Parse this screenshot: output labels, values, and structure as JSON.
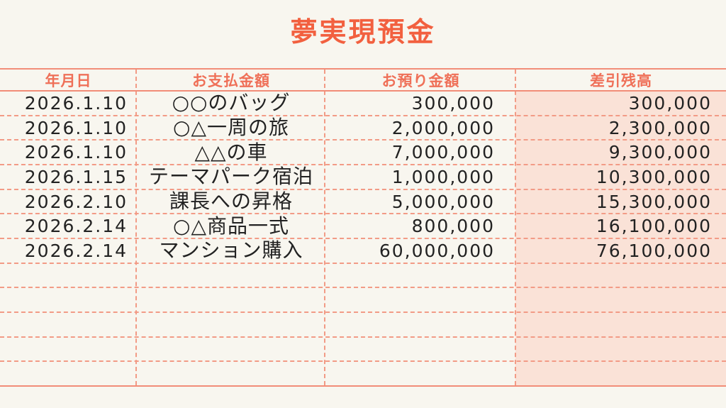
{
  "title": "夢実現預金",
  "table": {
    "columns": [
      "年月日",
      "お支払金額",
      "お預り金額",
      "差引残高"
    ],
    "rows": [
      {
        "date": "2026.1.10",
        "item": "○○のバッグ",
        "deposit": "300,000",
        "balance": "300,000"
      },
      {
        "date": "2026.1.10",
        "item": "○△一周の旅",
        "deposit": "2,000,000",
        "balance": "2,300,000"
      },
      {
        "date": "2026.1.10",
        "item": "△△の車",
        "deposit": "7,000,000",
        "balance": "9,300,000"
      },
      {
        "date": "2026.1.15",
        "item": "テーマパーク宿泊",
        "deposit": "1,000,000",
        "balance": "10,300,000"
      },
      {
        "date": "2026.2.10",
        "item": "課長への昇格",
        "deposit": "5,000,000",
        "balance": "15,300,000"
      },
      {
        "date": "2026.2.14",
        "item": "○△商品一式",
        "deposit": "800,000",
        "balance": "16,100,000"
      },
      {
        "date": "2026.2.14",
        "item": "マンション購入",
        "deposit": "60,000,000",
        "balance": "76,100,000"
      }
    ],
    "empty_row_count": 5
  },
  "chart_data": {
    "type": "table",
    "title": "夢実現預金",
    "columns": [
      "年月日",
      "お支払金額",
      "お預り金額",
      "差引残高"
    ],
    "rows": [
      [
        "2026.1.10",
        "○○のバッグ",
        "300,000",
        "300,000"
      ],
      [
        "2026.1.10",
        "○△一周の旅",
        "2,000,000",
        "2,300,000"
      ],
      [
        "2026.1.10",
        "△△の車",
        "7,000,000",
        "9,300,000"
      ],
      [
        "2026.1.15",
        "テーマパーク宿泊",
        "1,000,000",
        "10,300,000"
      ],
      [
        "2026.2.10",
        "課長への昇格",
        "5,000,000",
        "15,300,000"
      ],
      [
        "2026.2.14",
        "○△商品一式",
        "800,000",
        "16,100,000"
      ],
      [
        "2026.2.14",
        "マンション購入",
        "60,000,000",
        "76,100,000"
      ]
    ]
  },
  "colors": {
    "background": "#f8f6ef",
    "title": "#f2603f",
    "header_text": "#ef7058",
    "solid_line": "#f28d78",
    "dashed_line": "#f29b86",
    "balance_column_bg": "#fae2d7",
    "handwriting": "#222222"
  }
}
